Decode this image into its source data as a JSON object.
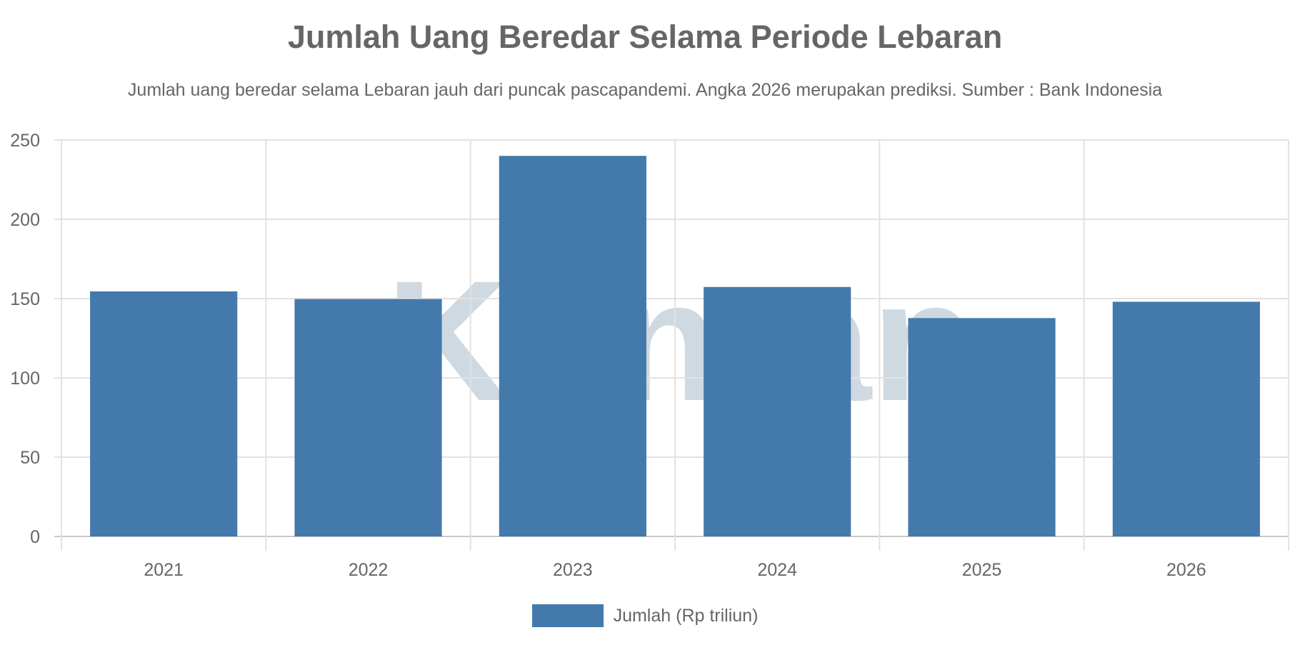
{
  "chart_data": {
    "type": "bar",
    "title": "Jumlah Uang Beredar Selama Periode Lebaran",
    "subtitle": "Jumlah uang beredar selama Lebaran jauh dari puncak pascapandemi. Angka 2026 merupakan prediksi. Sumber : Bank Indonesia",
    "categories": [
      "2021",
      "2022",
      "2023",
      "2024",
      "2025",
      "2026"
    ],
    "series": [
      {
        "name": "Jumlah (Rp triliun)",
        "values": [
          154.5,
          149.7,
          240,
          157.3,
          137.7,
          148
        ],
        "color": "#4479ab"
      }
    ],
    "xlabel": "",
    "ylabel": "",
    "ylim": [
      0,
      250
    ],
    "yticks": [
      "0",
      "50",
      "100",
      "150",
      "200",
      "250"
    ],
    "grid": true,
    "legend": "bottom",
    "watermark": "Kontan"
  }
}
